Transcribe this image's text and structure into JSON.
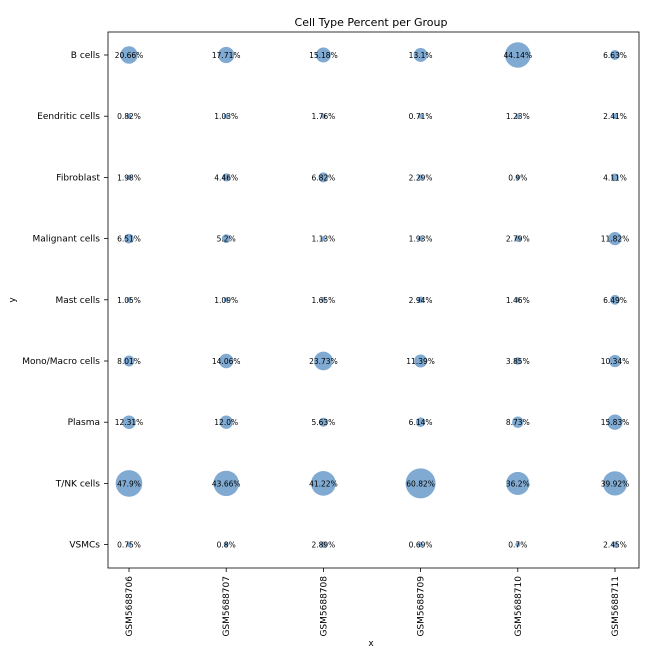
{
  "chart_data": {
    "type": "scatter",
    "title": "Cell Type Percent per Group",
    "xlabel": "x",
    "ylabel": "y",
    "x": [
      "GSM5688706",
      "GSM5688707",
      "GSM5688708",
      "GSM5688709",
      "GSM5688710",
      "GSM5688711"
    ],
    "y": [
      "B cells",
      "Eendritic cells",
      "Fibroblast",
      "Malignant cells",
      "Mast cells",
      "Mono/Macro cells",
      "Plasma",
      "T/NK cells",
      "VSMCs"
    ],
    "values": [
      [
        20.66,
        17.71,
        15.18,
        13.1,
        44.14,
        6.63
      ],
      [
        0.82,
        1.03,
        1.76,
        0.71,
        1.23,
        2.41
      ],
      [
        1.98,
        4.46,
        6.82,
        2.29,
        0.9,
        4.11
      ],
      [
        6.51,
        5.2,
        1.13,
        1.93,
        2.79,
        11.82
      ],
      [
        1.05,
        1.09,
        1.65,
        2.94,
        1.46,
        6.49
      ],
      [
        8.01,
        14.06,
        23.73,
        11.39,
        3.85,
        10.34
      ],
      [
        12.31,
        12.0,
        5.63,
        6.14,
        8.73,
        15.83
      ],
      [
        47.9,
        43.66,
        41.22,
        60.82,
        36.2,
        39.92
      ],
      [
        0.75,
        0.8,
        2.89,
        0.69,
        0.7,
        2.45
      ]
    ],
    "labels": [
      [
        "20.66%",
        "17.71%",
        "15.18%",
        "13.1%",
        "44.14%",
        "6.63%"
      ],
      [
        "0.82%",
        "1.03%",
        "1.76%",
        "0.71%",
        "1.23%",
        "2.41%"
      ],
      [
        "1.98%",
        "4.46%",
        "6.82%",
        "2.29%",
        "0.9%",
        "4.11%"
      ],
      [
        "6.51%",
        "5.2%",
        "1.13%",
        "1.93%",
        "2.79%",
        "11.82%"
      ],
      [
        "1.05%",
        "1.09%",
        "1.65%",
        "2.94%",
        "1.46%",
        "6.49%"
      ],
      [
        "8.01%",
        "14.06%",
        "23.73%",
        "11.39%",
        "3.85%",
        "10.34%"
      ],
      [
        "12.31%",
        "12.0%",
        "5.63%",
        "6.14%",
        "8.73%",
        "15.83%"
      ],
      [
        "47.9%",
        "43.66%",
        "41.22%",
        "60.82%",
        "36.2%",
        "39.92%"
      ],
      [
        "0.75%",
        "0.8%",
        "2.89%",
        "0.69%",
        "0.7%",
        "2.45%"
      ]
    ],
    "bubble_color": "#4a86be",
    "grid": false,
    "legend": "none"
  }
}
